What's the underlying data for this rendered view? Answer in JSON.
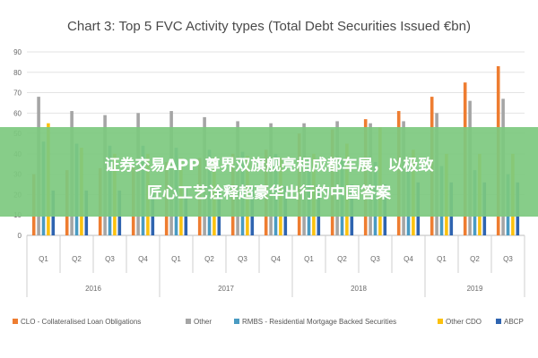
{
  "chart_data": {
    "type": "bar",
    "title": "Chart 3: Top 5 FVC Activity types (Total Debt Securities Issued €bn)",
    "xlabel": "",
    "ylabel": "",
    "ylim": [
      0,
      90
    ],
    "yticks": [
      0,
      10,
      20,
      30,
      40,
      50,
      60,
      70,
      80,
      90
    ],
    "grid": true,
    "legend_position": "bottom",
    "groups": [
      {
        "label": "2016",
        "quarters": [
          "Q1",
          "Q2",
          "Q3",
          "Q4"
        ]
      },
      {
        "label": "2017",
        "quarters": [
          "Q1",
          "Q2",
          "Q3",
          "Q4"
        ]
      },
      {
        "label": "2018",
        "quarters": [
          "Q1",
          "Q2",
          "Q3",
          "Q4"
        ]
      },
      {
        "label": "2019",
        "quarters": [
          "Q1",
          "Q2",
          "Q3"
        ]
      }
    ],
    "categories": [
      "2016 Q1",
      "2016 Q2",
      "2016 Q3",
      "2016 Q4",
      "2017 Q1",
      "2017 Q2",
      "2017 Q3",
      "2017 Q4",
      "2018 Q1",
      "2018 Q2",
      "2018 Q3",
      "2018 Q4",
      "2019 Q1",
      "2019 Q2",
      "2019 Q3"
    ],
    "series": [
      {
        "name": "CLO - Collateralised Loan Obligations",
        "color": "#ee7d31",
        "values": [
          30,
          32,
          33,
          34,
          36,
          38,
          40,
          42,
          50,
          52,
          57,
          61,
          68,
          75,
          83
        ]
      },
      {
        "name": "Other",
        "color": "#a5a5a5",
        "values": [
          68,
          61,
          59,
          60,
          61,
          58,
          56,
          55,
          55,
          56,
          55,
          56,
          60,
          66,
          67
        ]
      },
      {
        "name": "RMBS - Residential Mortgage Backed Securities",
        "color": "#4a9bc2",
        "values": [
          46,
          45,
          44,
          44,
          43,
          42,
          41,
          40,
          38,
          37,
          36,
          35,
          34,
          32,
          30
        ]
      },
      {
        "name": "Other CDO",
        "color": "#fcc10e",
        "values": [
          55,
          43,
          40,
          40,
          38,
          38,
          39,
          38,
          40,
          45,
          53,
          42,
          40,
          40,
          40
        ]
      },
      {
        "name": "ABCP",
        "color": "#2f64b0",
        "values": [
          22,
          22,
          22,
          23,
          23,
          23,
          24,
          24,
          25,
          25,
          25,
          26,
          26,
          26,
          26
        ]
      }
    ]
  },
  "banner": {
    "line1": "证券交易APP 尊界双旗舰亮相成都车展，以极致",
    "line2": "匠心工艺诠释超豪华出行的中国答案",
    "color": "#7dc97f"
  }
}
